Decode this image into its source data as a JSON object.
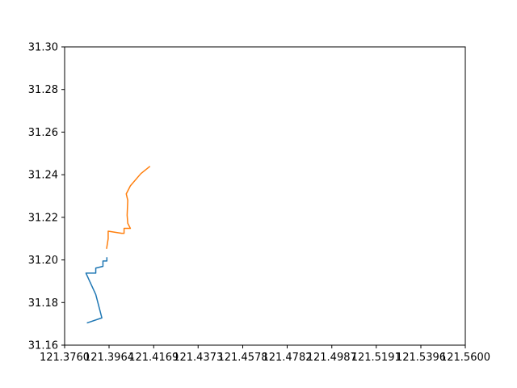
{
  "chart_data": {
    "type": "line",
    "title": "",
    "xlabel": "",
    "ylabel": "",
    "xlim": [
      121.376,
      121.56
    ],
    "ylim": [
      31.16,
      31.3
    ],
    "xticks": [
      "121.3760",
      "121.3964",
      "121.4169",
      "121.4373",
      "121.4578",
      "121.4782",
      "121.4987",
      "121.5191",
      "121.5396",
      "121.5600"
    ],
    "yticks": [
      "31.16",
      "31.18",
      "31.20",
      "31.22",
      "31.24",
      "31.26",
      "31.28",
      "31.30"
    ],
    "grid": false,
    "legend": "none",
    "series": [
      {
        "color": "#1f77b4",
        "points": [
          [
            121.3865,
            31.1705
          ],
          [
            121.3931,
            31.1728
          ],
          [
            121.3903,
            31.1838
          ],
          [
            121.3875,
            31.19
          ],
          [
            121.3858,
            31.1938
          ],
          [
            121.3903,
            31.1938
          ],
          [
            121.3903,
            31.1962
          ],
          [
            121.3936,
            31.197
          ],
          [
            121.3936,
            31.1995
          ],
          [
            121.3954,
            31.1995
          ],
          [
            121.3954,
            31.201
          ]
        ]
      },
      {
        "color": "#ff7f0e",
        "points": [
          [
            121.3953,
            31.2055
          ],
          [
            121.396,
            31.21
          ],
          [
            121.396,
            31.2135
          ],
          [
            121.4022,
            31.2125
          ],
          [
            121.4033,
            31.2125
          ],
          [
            121.4033,
            31.2148
          ],
          [
            121.4062,
            31.2148
          ],
          [
            121.405,
            31.2172
          ],
          [
            121.4047,
            31.221
          ],
          [
            121.405,
            31.228
          ],
          [
            121.4043,
            31.231
          ],
          [
            121.4062,
            31.2348
          ],
          [
            121.411,
            31.2405
          ],
          [
            121.415,
            31.2438
          ]
        ]
      }
    ]
  }
}
